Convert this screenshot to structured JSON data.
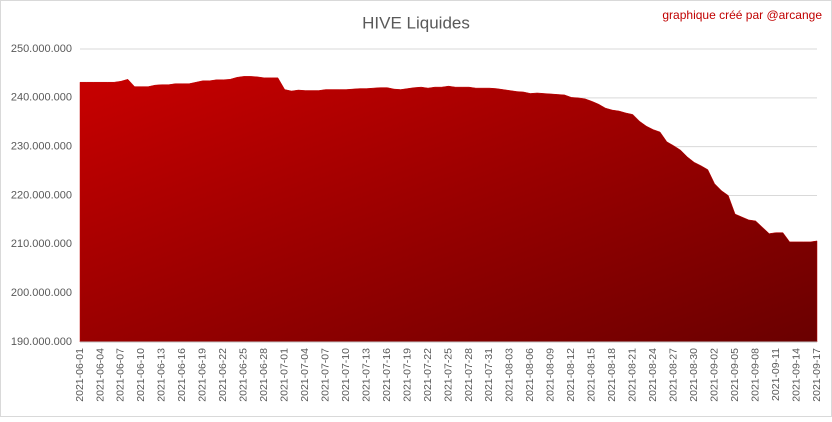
{
  "chart_data": {
    "type": "area",
    "title": "HIVE Liquides",
    "subtitle": "graphique créé par @arcange",
    "color": "#c00000",
    "grid": true,
    "ylim": [
      190000000,
      250000000
    ],
    "yticks": [
      {
        "value": 190000000,
        "label": "190.000.000"
      },
      {
        "value": 200000000,
        "label": "200.000.000"
      },
      {
        "value": 210000000,
        "label": "210.000.000"
      },
      {
        "value": 220000000,
        "label": "220.000.000"
      },
      {
        "value": 230000000,
        "label": "230.000.000"
      },
      {
        "value": 240000000,
        "label": "240.000.000"
      },
      {
        "value": 250000000,
        "label": "250.000.000"
      }
    ],
    "categories": [
      "2021-06-01",
      null,
      null,
      "2021-06-04",
      null,
      null,
      "2021-06-07",
      null,
      null,
      "2021-06-10",
      null,
      null,
      "2021-06-13",
      null,
      null,
      "2021-06-16",
      null,
      null,
      "2021-06-19",
      null,
      null,
      "2021-06-22",
      null,
      null,
      "2021-06-25",
      null,
      null,
      "2021-06-28",
      null,
      null,
      "2021-07-01",
      null,
      null,
      "2021-07-04",
      null,
      null,
      "2021-07-07",
      null,
      null,
      "2021-07-10",
      null,
      null,
      "2021-07-13",
      null,
      null,
      "2021-07-16",
      null,
      null,
      "2021-07-19",
      null,
      null,
      "2021-07-22",
      null,
      null,
      "2021-07-25",
      null,
      null,
      "2021-07-28",
      null,
      null,
      "2021-07-31",
      null,
      null,
      "2021-08-03",
      null,
      null,
      "2021-08-06",
      null,
      null,
      "2021-08-09",
      null,
      null,
      "2021-08-12",
      null,
      null,
      "2021-08-15",
      null,
      null,
      "2021-08-18",
      null,
      null,
      "2021-08-21",
      null,
      null,
      "2021-08-24",
      null,
      null,
      "2021-08-27",
      null,
      null,
      "2021-08-30",
      null,
      null,
      "2021-09-02",
      null,
      null,
      "2021-09-05",
      null,
      null,
      "2021-09-08",
      null,
      null,
      "2021-09-11",
      null,
      null,
      "2021-09-14",
      null,
      null,
      "2021-09-17"
    ],
    "values": [
      243200000,
      243200000,
      243200000,
      243200000,
      243200000,
      243200000,
      243400000,
      243800000,
      242300000,
      242300000,
      242300000,
      242600000,
      242700000,
      242700000,
      242900000,
      242900000,
      242900000,
      243200000,
      243500000,
      243500000,
      243700000,
      243700000,
      243800000,
      244200000,
      244400000,
      244400000,
      244300000,
      244100000,
      244100000,
      244100000,
      241700000,
      241400000,
      241600000,
      241500000,
      241500000,
      241500000,
      241700000,
      241700000,
      241700000,
      241700000,
      241800000,
      241900000,
      241900000,
      242000000,
      242100000,
      242100000,
      241800000,
      241700000,
      241900000,
      242100000,
      242200000,
      242000000,
      242200000,
      242200000,
      242400000,
      242200000,
      242200000,
      242200000,
      242000000,
      242000000,
      242000000,
      241900000,
      241700000,
      241500000,
      241300000,
      241200000,
      240900000,
      241000000,
      240900000,
      240800000,
      240700000,
      240600000,
      240100000,
      240000000,
      239800000,
      239300000,
      238700000,
      237900000,
      237500000,
      237300000,
      236900000,
      236600000,
      235200000,
      234200000,
      233500000,
      233000000,
      231000000,
      230200000,
      229300000,
      227900000,
      226800000,
      226100000,
      225300000,
      222400000,
      221000000,
      220000000,
      216200000,
      215600000,
      215000000,
      214800000,
      213500000,
      212200000,
      212400000,
      212400000,
      210500000,
      210500000,
      210500000,
      210500000,
      210700000
    ]
  }
}
